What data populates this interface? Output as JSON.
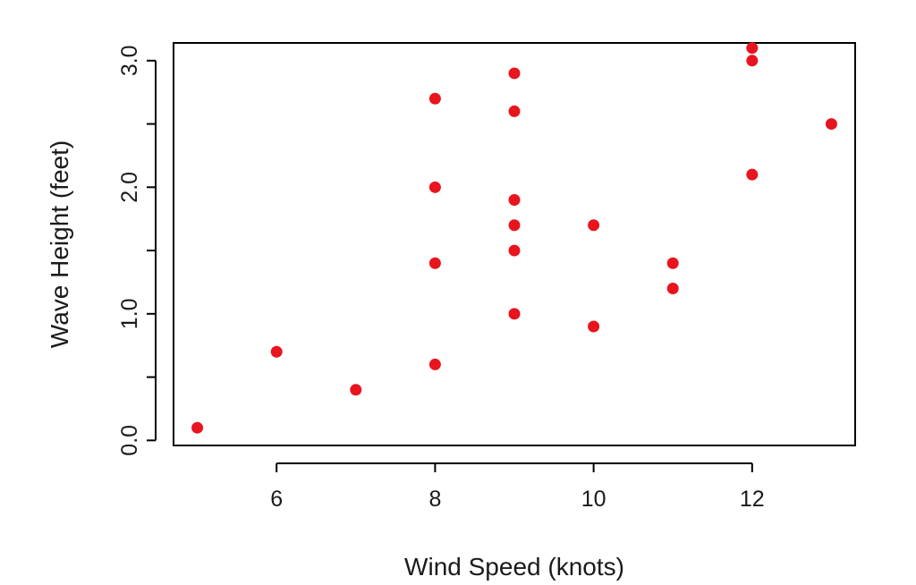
{
  "chart_data": {
    "type": "scatter",
    "title": "",
    "xlabel": "Wind Speed (knots)",
    "ylabel": "Wave Height (feet)",
    "xlim": [
      4.7,
      13.3
    ],
    "ylim": [
      -0.04,
      3.14
    ],
    "x_ticks": [
      6,
      8,
      10,
      12
    ],
    "x_tick_labels": [
      "6",
      "8",
      "10",
      "12"
    ],
    "y_ticks": [
      0,
      0.5,
      1,
      1.5,
      2,
      2.5,
      3
    ],
    "y_tick_labels": [
      "0.0",
      "",
      "1.0",
      "",
      "2.0",
      "",
      "3.0"
    ],
    "grid": false,
    "point_color": "#e8141e",
    "points": [
      {
        "x": 5,
        "y": 0.1
      },
      {
        "x": 6,
        "y": 0.7
      },
      {
        "x": 7,
        "y": 0.4
      },
      {
        "x": 8,
        "y": 0.6
      },
      {
        "x": 8,
        "y": 1.4
      },
      {
        "x": 8,
        "y": 2.0
      },
      {
        "x": 8,
        "y": 2.7
      },
      {
        "x": 9,
        "y": 1.0
      },
      {
        "x": 9,
        "y": 1.5
      },
      {
        "x": 9,
        "y": 1.7
      },
      {
        "x": 9,
        "y": 1.9
      },
      {
        "x": 9,
        "y": 2.6
      },
      {
        "x": 9,
        "y": 2.9
      },
      {
        "x": 10,
        "y": 0.9
      },
      {
        "x": 10,
        "y": 1.7
      },
      {
        "x": 11,
        "y": 1.2
      },
      {
        "x": 11,
        "y": 1.4
      },
      {
        "x": 12,
        "y": 2.1
      },
      {
        "x": 12,
        "y": 3.0
      },
      {
        "x": 12,
        "y": 3.1
      },
      {
        "x": 13,
        "y": 2.5
      }
    ]
  }
}
